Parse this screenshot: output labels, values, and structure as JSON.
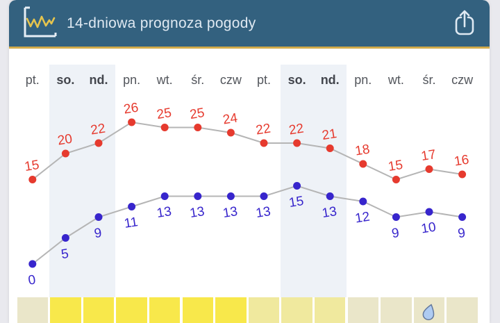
{
  "header": {
    "title": "14-dniowa prognoza pogody"
  },
  "colors": {
    "page_bg": "#e9e9ee",
    "card_bg": "#ffffff",
    "header_bg": "#33617f",
    "header_accent": "#d2ab4b",
    "header_text": "#dfe9f2",
    "icon_axes": "#e6eef6",
    "icon_zigzag": "#e5c44e",
    "line": "#b5b5b5",
    "high_series": "#e63a2e",
    "low_series": "#3725cc",
    "weekend_shade": "#eef2f7",
    "day_label": "#53565c",
    "day_label_weekend": "#43464d",
    "droplet_fill": "#aecbf2",
    "droplet_stroke": "#64799c"
  },
  "chart_data": {
    "type": "line",
    "title": "14-dniowa prognoza pogody",
    "categories": [
      "pt.",
      "so.",
      "nd.",
      "pn.",
      "wt.",
      "śr.",
      "czw",
      "pt.",
      "so.",
      "nd.",
      "pn.",
      "wt.",
      "śr.",
      "czw"
    ],
    "weekend_indices": [
      1,
      2,
      8,
      9
    ],
    "series": [
      {
        "name": "high",
        "label_position": "above",
        "color": "#e63a2e",
        "values": [
          15,
          20,
          22,
          26,
          25,
          25,
          24,
          22,
          22,
          21,
          18,
          15,
          17,
          16
        ]
      },
      {
        "name": "low",
        "label_position": "below",
        "color": "#3725cc",
        "values": [
          0,
          5,
          9,
          11,
          13,
          13,
          13,
          13,
          15,
          13,
          12,
          9,
          10,
          9
        ]
      }
    ],
    "ylim": [
      -2,
      28
    ],
    "grid": false,
    "legend": false,
    "connector_color": "#b5b5b5"
  },
  "sun_strip": {
    "levels": [
      "pale",
      "bright",
      "bright",
      "bright",
      "bright",
      "bright",
      "bright",
      "medium",
      "medium",
      "medium",
      "pale",
      "pale",
      "pale",
      "pale"
    ],
    "droplet_index": 12,
    "colors": {
      "bright": "#f8e84b",
      "medium": "#f0e99e",
      "pale": "#eae6c9"
    },
    "droplet_icon": "rain-droplet-icon"
  }
}
